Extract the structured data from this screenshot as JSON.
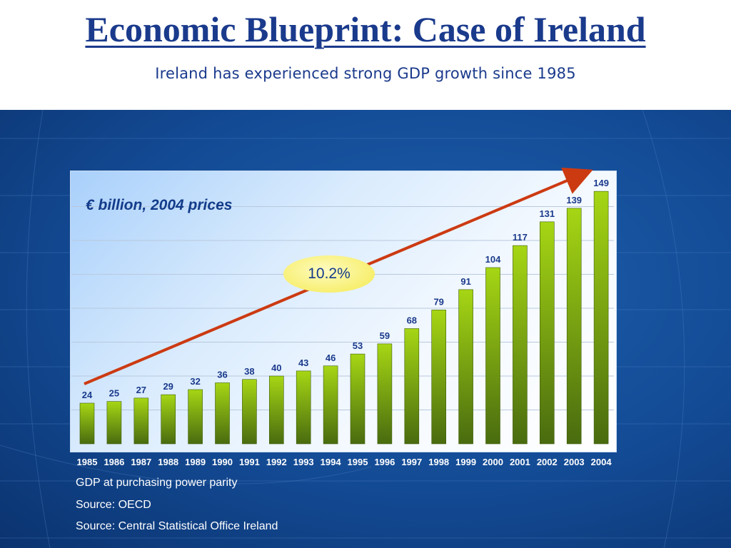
{
  "slide": {
    "title": "Economic Blueprint: Case of Ireland",
    "subtitle": "Ireland has experienced strong GDP growth since 1985"
  },
  "chart_data": {
    "type": "bar",
    "unit_label": "€ billion, 2004 prices",
    "categories": [
      "1985",
      "1986",
      "1987",
      "1988",
      "1989",
      "1990",
      "1991",
      "1992",
      "1993",
      "1994",
      "1995",
      "1996",
      "1997",
      "1998",
      "1999",
      "2000",
      "2001",
      "2002",
      "2003",
      "2004"
    ],
    "values": [
      24,
      25,
      27,
      29,
      32,
      36,
      38,
      40,
      43,
      46,
      53,
      59,
      68,
      79,
      91,
      104,
      117,
      131,
      139,
      149
    ],
    "data_labels": [
      "24",
      "25",
      "27",
      "29",
      "32",
      "36",
      "38",
      "40",
      "43",
      "46",
      "53",
      "59",
      "68",
      "79",
      "91",
      "104",
      "117",
      "131",
      "139",
      "149"
    ],
    "trend_annotation": "10.2%",
    "ylim": [
      0,
      160
    ],
    "grid": true,
    "colors": {
      "bar_top": "#a6d614",
      "bar_bottom": "#496b0f",
      "trend_arrow": "#cc3a12",
      "data_label": "#1a3a8c",
      "tick_label": "#ffffff"
    }
  },
  "notes": [
    "GDP at purchasing power parity",
    "Source: OECD",
    "Source: Central Statistical Office Ireland"
  ]
}
